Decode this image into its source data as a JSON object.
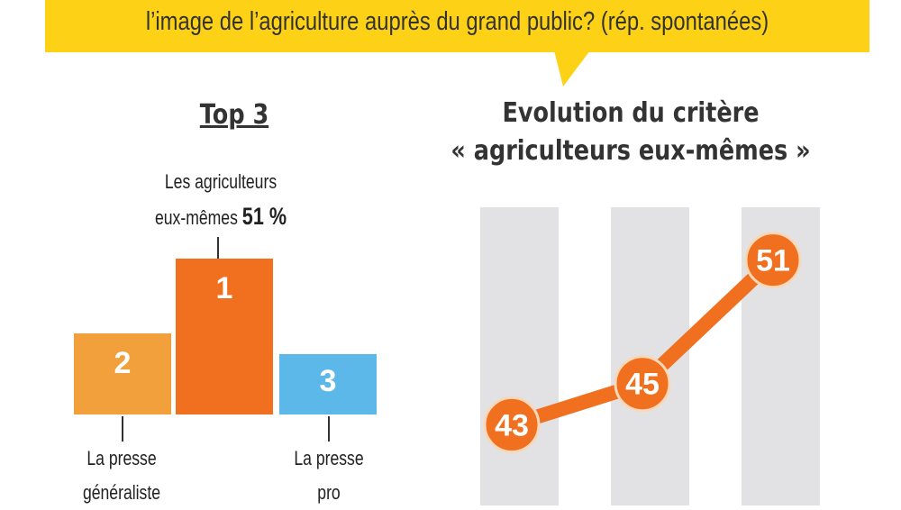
{
  "question": "l’image de l’agriculture auprès du grand public? (rép. spontanées)",
  "colors": {
    "banner": "#fcd116",
    "accent": "#f07020",
    "rank2": "#f2a03c",
    "rank3": "#5bb8e8",
    "column": "#e2e2e4"
  },
  "chart_data": [
    {
      "type": "bar",
      "title": "Top 3",
      "categories": [
        "La presse généraliste",
        "Les agriculteurs eux-mêmes",
        "La presse pro"
      ],
      "ranks": [
        "2",
        "1",
        "3"
      ],
      "annotations": {
        "rank1_label_line1": "Les agriculteurs",
        "rank1_label_line2": "eux-mêmes",
        "rank1_value": "51 %",
        "rank2_line1": "La presse",
        "rank2_line2": "généraliste",
        "rank3_line1": "La presse",
        "rank3_line2": "pro"
      }
    },
    {
      "type": "line",
      "title_line1": "Evolution du critère",
      "title_line2": "« agriculteurs eux-mêmes »",
      "values": [
        43,
        45,
        51
      ],
      "labels": [
        "43",
        "45",
        "51"
      ],
      "ylim": [
        40,
        54
      ]
    }
  ]
}
